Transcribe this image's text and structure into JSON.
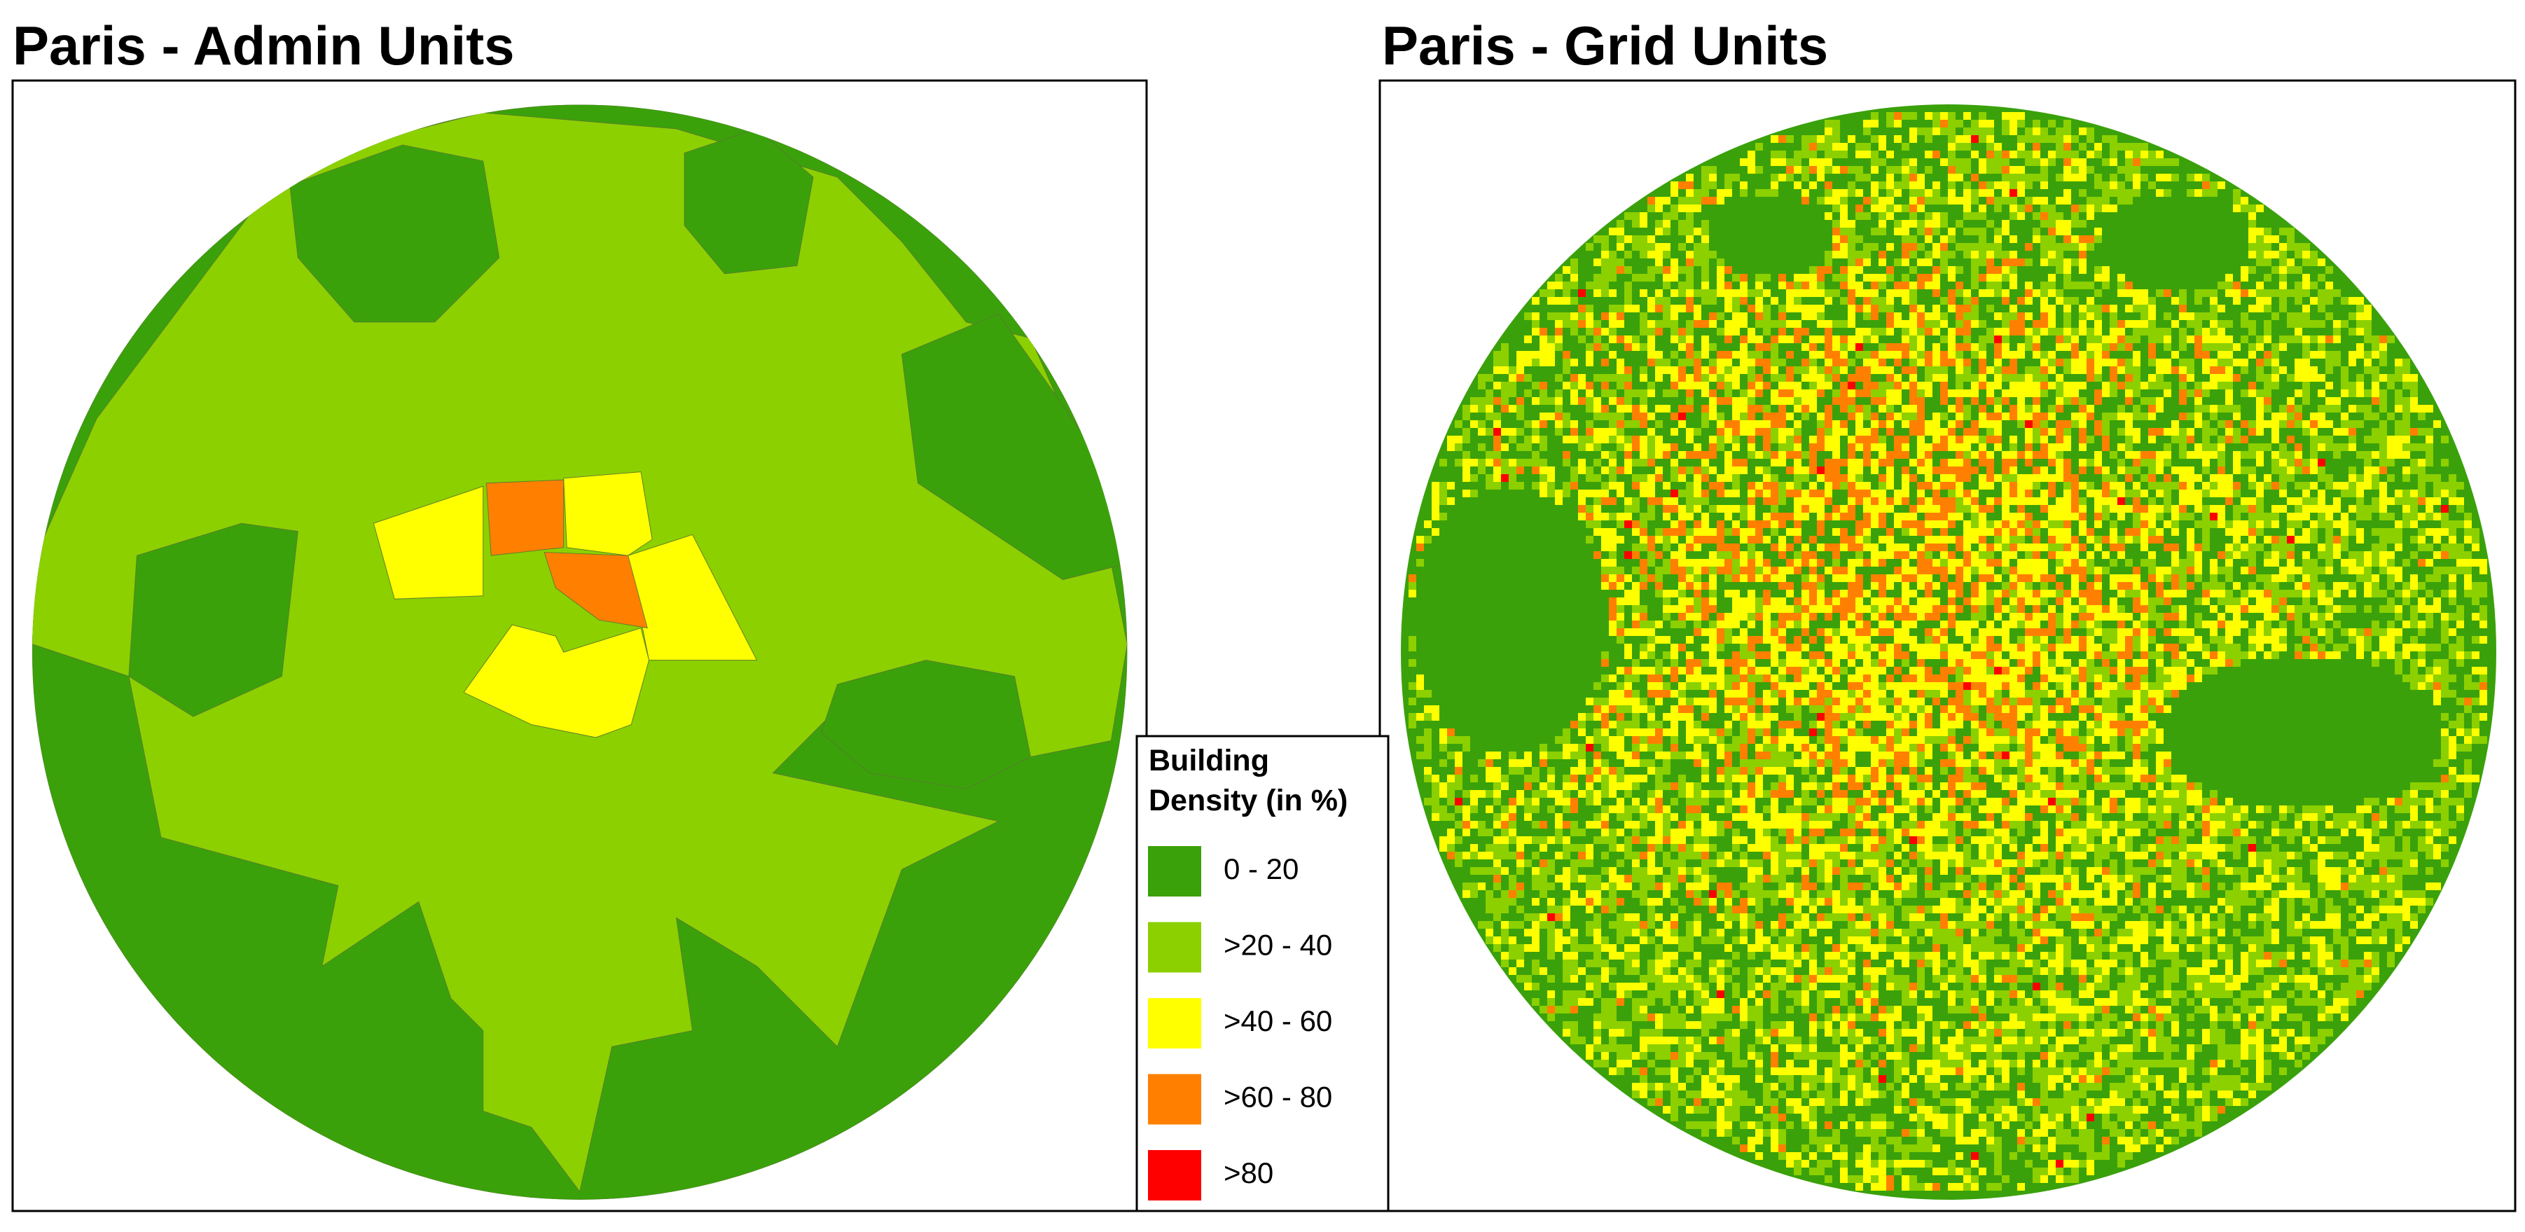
{
  "panels": [
    {
      "title": "Paris - Admin Units"
    },
    {
      "title": "Paris - Grid Units"
    }
  ],
  "legend": {
    "title_lines": [
      "Building",
      "Density (in %)"
    ],
    "items": [
      {
        "label": "0 - 20",
        "color": "#3aa10a"
      },
      {
        "label": ">20 - 40",
        "color": "#8cd000"
      },
      {
        "label": ">40 - 60",
        "color": "#ffff00"
      },
      {
        "label": ">60 - 80",
        "color": "#ff8000"
      },
      {
        "label": ">80",
        "color": "#ff0000"
      }
    ]
  }
}
